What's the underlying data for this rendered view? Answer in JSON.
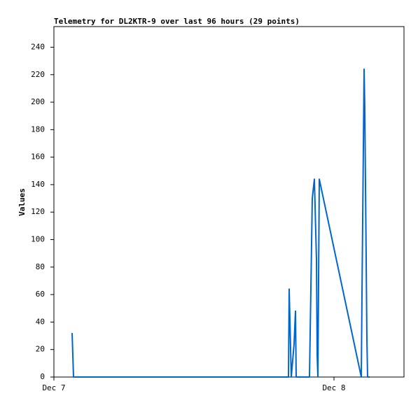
{
  "chart_data": {
    "type": "line",
    "title": "Telemetry for DL2KTR-9 over last 96 hours (29 points)",
    "y_label": "Values",
    "x": [
      1.56,
      1.68,
      20.1,
      20.16,
      20.34,
      20.58,
      20.7,
      20.76,
      21.9,
      22.02,
      22.14,
      22.32,
      22.5,
      22.56,
      22.62,
      22.68,
      22.74,
      26.34,
      26.4,
      26.52,
      26.58,
      26.64,
      26.7,
      26.76,
      26.82,
      26.88,
      26.94,
      27.0,
      27.06
    ],
    "values": [
      32,
      0,
      0,
      64,
      0,
      24,
      48,
      0,
      0,
      64,
      130,
      144,
      85,
      16,
      0,
      70,
      144,
      0,
      60,
      168,
      224,
      196,
      140,
      85,
      28,
      0,
      0,
      0,
      0
    ],
    "color": "#0066cc",
    "xlim": [
      0,
      30
    ],
    "xticks": [
      {
        "value": 0,
        "label": "Dec 7"
      },
      {
        "value": 24,
        "label": "Dec 8"
      }
    ],
    "ylim": [
      0,
      255
    ],
    "yticks": [
      0,
      20,
      40,
      60,
      80,
      100,
      120,
      140,
      160,
      180,
      200,
      220,
      240
    ],
    "grid": false
  }
}
